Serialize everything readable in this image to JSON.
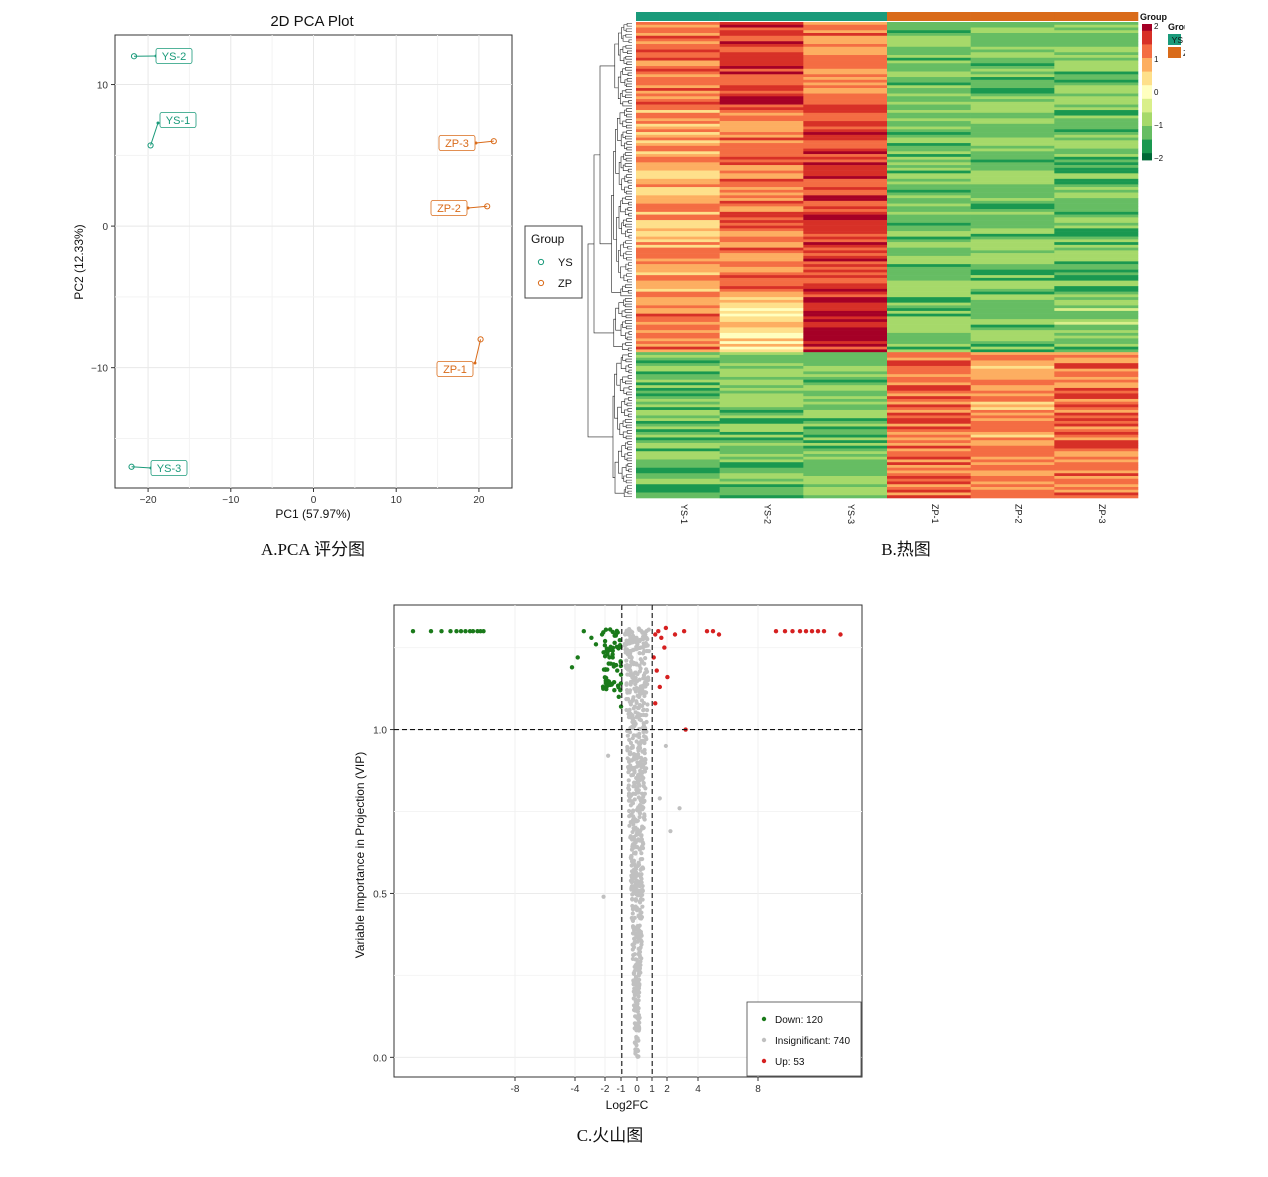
{
  "captions": {
    "a": "A.PCA 评分图",
    "b": "B.热图",
    "c": "C.火山图"
  },
  "colors": {
    "ys": "#1a9a7a",
    "zp": "#d96b1a",
    "down": "#1a7a1a",
    "up": "#d62020",
    "insig": "#c0c0c0",
    "heat": [
      "#006837",
      "#1a9850",
      "#66bd63",
      "#a6d96a",
      "#d9ef8b",
      "#ffffbf",
      "#fee08b",
      "#fdae61",
      "#f46d43",
      "#d73027",
      "#a50026"
    ]
  },
  "chart_data": [
    {
      "type": "scatter",
      "title": "2D PCA Plot",
      "xlabel": "PC1 (57.97%)",
      "ylabel": "PC2 (12.33%)",
      "xlim": [
        -24,
        24
      ],
      "ylim": [
        -18.5,
        13.5
      ],
      "xticks": [
        -20,
        -10,
        0,
        10,
        20
      ],
      "yticks": [
        -10,
        0,
        10
      ],
      "grid": true,
      "legend": {
        "title": "Group",
        "position": "right",
        "entries": [
          "YS",
          "ZP"
        ]
      },
      "points": [
        {
          "label": "YS-1",
          "group": "YS",
          "x": -19.7,
          "y": 5.7
        },
        {
          "label": "YS-2",
          "group": "YS",
          "x": -21.7,
          "y": 12.0
        },
        {
          "label": "YS-3",
          "group": "YS",
          "x": -22.0,
          "y": -17.0
        },
        {
          "label": "ZP-1",
          "group": "ZP",
          "x": 20.2,
          "y": -8.0
        },
        {
          "label": "ZP-2",
          "group": "ZP",
          "x": 21.0,
          "y": 1.4
        },
        {
          "label": "ZP-3",
          "group": "ZP",
          "x": 21.8,
          "y": 6.0
        }
      ]
    },
    {
      "type": "heatmap",
      "columns": [
        "YS-1",
        "YS-2",
        "YS-3",
        "ZP-1",
        "ZP-2",
        "ZP-3"
      ],
      "column_groups": [
        "YS",
        "YS",
        "YS",
        "ZP",
        "ZP",
        "ZP"
      ],
      "color_range": [
        -2,
        2
      ],
      "colorbar_title": "Group",
      "colorbar_ticks": [
        "2",
        "1",
        "0",
        "-1",
        "-2"
      ],
      "annotation_legend": {
        "title": "Group",
        "entries": [
          "YS",
          "ZP"
        ]
      },
      "row_count": 173,
      "row_clusters": [
        {
          "rows": 31,
          "means": [
            1.25,
            1.55,
            1.05,
            -1.05,
            -1.05,
            -1.05
          ]
        },
        {
          "rows": 69,
          "means": [
            0.85,
            1.15,
            1.55,
            -1.1,
            -1.05,
            -1.1
          ]
        },
        {
          "rows": 20,
          "means": [
            1.0,
            0.4,
            1.7,
            -1.05,
            -1.05,
            -1.0
          ]
        },
        {
          "rows": 53,
          "means": [
            -1.1,
            -1.05,
            -1.05,
            1.2,
            0.9,
            1.2
          ]
        }
      ]
    },
    {
      "type": "scatter",
      "xlabel": "Log2FC",
      "ylabel": "Variable Importance in Projection (VIP)",
      "xlim": [
        -16,
        15
      ],
      "ylim": [
        -0.06,
        1.38
      ],
      "xticks": [
        "-8",
        "-4",
        "-2",
        "-1",
        "0",
        "1",
        "2",
        "4",
        "8"
      ],
      "yticks": [
        "0.0",
        "0.5",
        "1.0"
      ],
      "thresholds": {
        "vip": 1.0,
        "log2fc": [
          -1,
          1
        ]
      },
      "grid": true,
      "legend": {
        "position": "bottom-right",
        "entries": [
          {
            "name": "Down",
            "count": 120,
            "label": "Down: 120"
          },
          {
            "name": "Insignificant",
            "count": 740,
            "label": "Insignificant: 740"
          },
          {
            "name": "Up",
            "count": 53,
            "label": "Up: 53"
          }
        ]
      },
      "highlighted_points": {
        "down": [
          [
            -14.8,
            1.3
          ],
          [
            -13.6,
            1.3
          ],
          [
            -12.9,
            1.3
          ],
          [
            -12.3,
            1.3
          ],
          [
            -11.9,
            1.3
          ],
          [
            -11.6,
            1.3
          ],
          [
            -11.3,
            1.3
          ],
          [
            -11.0,
            1.3
          ],
          [
            -10.8,
            1.3
          ],
          [
            -10.5,
            1.3
          ],
          [
            -10.3,
            1.3
          ],
          [
            -10.1,
            1.3
          ],
          [
            -3.5,
            1.3
          ],
          [
            -3.0,
            1.28
          ],
          [
            -2.7,
            1.26
          ],
          [
            -2.3,
            1.29
          ],
          [
            -1.9,
            1.24
          ],
          [
            -1.6,
            1.22
          ],
          [
            -1.3,
            1.18
          ],
          [
            -1.1,
            1.12
          ],
          [
            -1.05,
            1.07
          ],
          [
            -1.2,
            1.1
          ],
          [
            -3.9,
            1.22
          ],
          [
            -4.2,
            1.19
          ],
          [
            -2.1,
            1.27
          ],
          [
            -1.4,
            1.29
          ]
        ],
        "up": [
          [
            1.2,
            1.29
          ],
          [
            1.4,
            1.3
          ],
          [
            1.6,
            1.28
          ],
          [
            1.9,
            1.31
          ],
          [
            2.5,
            1.29
          ],
          [
            3.1,
            1.3
          ],
          [
            4.6,
            1.3
          ],
          [
            5.0,
            1.3
          ],
          [
            5.4,
            1.29
          ],
          [
            9.2,
            1.3
          ],
          [
            9.8,
            1.3
          ],
          [
            10.3,
            1.3
          ],
          [
            10.8,
            1.3
          ],
          [
            11.2,
            1.3
          ],
          [
            11.6,
            1.3
          ],
          [
            12.0,
            1.3
          ],
          [
            12.4,
            1.3
          ],
          [
            13.5,
            1.29
          ],
          [
            1.1,
            1.22
          ],
          [
            1.3,
            1.18
          ],
          [
            1.5,
            1.13
          ],
          [
            1.2,
            1.08
          ],
          [
            1.8,
            1.25
          ],
          [
            2.0,
            1.16
          ],
          [
            3.2,
            1.0
          ]
        ],
        "insignificant_outliers": [
          [
            -1.9,
            0.92
          ],
          [
            -2.2,
            0.49
          ],
          [
            1.5,
            0.79
          ],
          [
            2.8,
            0.76
          ],
          [
            2.2,
            0.69
          ],
          [
            1.9,
            0.95
          ]
        ]
      }
    }
  ]
}
